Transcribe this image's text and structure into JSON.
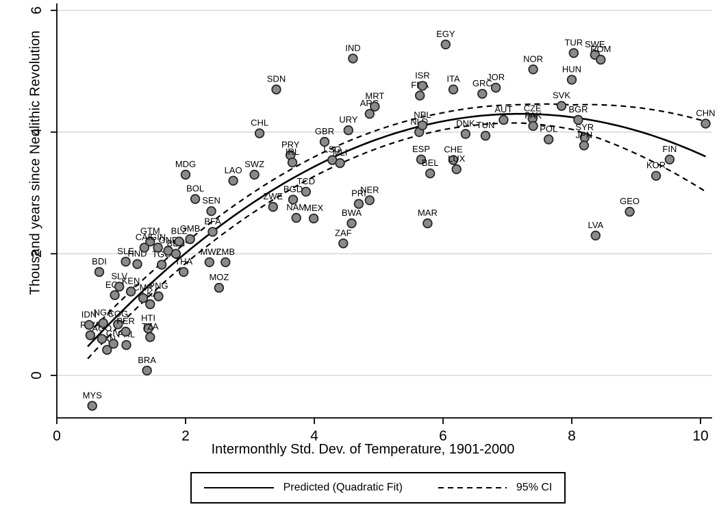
{
  "figure": {
    "ylabel": "Thousand years since Neolithic Revolution",
    "xlabel": "Intermonthly Std. Dev. of Temperature, 1901-2000",
    "legend": {
      "fit_label": "Predicted (Quadratic Fit)",
      "ci_label": "95% CI"
    }
  },
  "chart_data": {
    "type": "scatter",
    "title": "",
    "xlabel": "Intermonthly Std. Dev. of Temperature, 1901-2000",
    "ylabel": "Thousand years since Neolithic Revolution",
    "xlim": [
      0,
      10.5
    ],
    "ylim": [
      -0.9,
      6.3
    ],
    "xticks": [
      0,
      2,
      4,
      6,
      8,
      10
    ],
    "yticks": [
      0,
      2,
      4,
      6
    ],
    "grid": "horizontal",
    "legend_position": "bottom-center",
    "legend_entries": [
      "Predicted (Quadratic Fit)",
      "95% CI"
    ],
    "marker": {
      "fill": "#8a8a8a",
      "stroke": "#262626",
      "radius": 6.3,
      "stroke_width": 1.8
    },
    "colors": {
      "grid": "#d9d9d9",
      "axis": "#000000",
      "fit_line": "#000000",
      "ci_line": "#000000"
    },
    "fit": {
      "type": "quadratic",
      "peak_x": 7.2,
      "peak_y": 4.3,
      "coeff": -0.0847,
      "x_range": [
        0.48,
        10.1
      ]
    },
    "ci": {
      "x": [
        0.48,
        2,
        4,
        6,
        7.2,
        8,
        9,
        10.1
      ],
      "half_width": [
        0.2,
        0.17,
        0.16,
        0.14,
        0.15,
        0.2,
        0.38,
        0.58
      ]
    },
    "points": [
      {
        "label": "MYS",
        "x": 0.55,
        "y": -0.5
      },
      {
        "label": "BRA",
        "x": 1.4,
        "y": 0.08
      },
      {
        "label": "PAN",
        "x": 0.78,
        "y": 0.42
      },
      {
        "label": "PHL",
        "x": 1.08,
        "y": 0.5
      },
      {
        "label": "CIV",
        "x": 0.88,
        "y": 0.52
      },
      {
        "label": "RWA",
        "x": 0.52,
        "y": 0.66
      },
      {
        "label": "AGO",
        "x": 0.7,
        "y": 0.6
      },
      {
        "label": "IDN",
        "x": 0.5,
        "y": 0.83
      },
      {
        "label": "NGA",
        "x": 0.72,
        "y": 0.86
      },
      {
        "label": "COG",
        "x": 0.95,
        "y": 0.84
      },
      {
        "label": "PER",
        "x": 1.07,
        "y": 0.72
      },
      {
        "label": "HTI",
        "x": 1.42,
        "y": 0.77
      },
      {
        "label": "TZA",
        "x": 1.45,
        "y": 0.63
      },
      {
        "label": "LKA",
        "x": 1.45,
        "y": 1.17
      },
      {
        "label": "CMR",
        "x": 1.34,
        "y": 1.27
      },
      {
        "label": "PNG",
        "x": 1.58,
        "y": 1.3
      },
      {
        "label": "ECU",
        "x": 0.9,
        "y": 1.32
      },
      {
        "label": "KEN",
        "x": 1.15,
        "y": 1.38
      },
      {
        "label": "SLV",
        "x": 0.97,
        "y": 1.46
      },
      {
        "label": "BDI",
        "x": 0.66,
        "y": 1.7
      },
      {
        "label": "SLE",
        "x": 1.07,
        "y": 1.87
      },
      {
        "label": "HND",
        "x": 1.25,
        "y": 1.83
      },
      {
        "label": "TGO",
        "x": 1.63,
        "y": 1.82
      },
      {
        "label": "THA",
        "x": 1.97,
        "y": 1.7
      },
      {
        "label": "GTM",
        "x": 1.45,
        "y": 2.2
      },
      {
        "label": "CAF",
        "x": 1.36,
        "y": 2.1
      },
      {
        "label": "GIN",
        "x": 1.57,
        "y": 2.1
      },
      {
        "label": "GNB",
        "x": 1.73,
        "y": 2.05
      },
      {
        "label": "BEN",
        "x": 1.85,
        "y": 2.0
      },
      {
        "label": "BLZ",
        "x": 1.9,
        "y": 2.2
      },
      {
        "label": "GMB",
        "x": 2.07,
        "y": 2.24
      },
      {
        "label": "MDG",
        "x": 2.0,
        "y": 3.3
      },
      {
        "label": "BOL",
        "x": 2.15,
        "y": 2.9
      },
      {
        "label": "SEN",
        "x": 2.4,
        "y": 2.7
      },
      {
        "label": "BFA",
        "x": 2.42,
        "y": 2.36
      },
      {
        "label": "MWI",
        "x": 2.37,
        "y": 1.86
      },
      {
        "label": "ZMB",
        "x": 2.62,
        "y": 1.86
      },
      {
        "label": "MOZ",
        "x": 2.52,
        "y": 1.44
      },
      {
        "label": "LAO",
        "x": 2.74,
        "y": 3.2
      },
      {
        "label": "SWZ",
        "x": 3.07,
        "y": 3.3
      },
      {
        "label": "CHL",
        "x": 3.15,
        "y": 3.98
      },
      {
        "label": "SDN",
        "x": 3.41,
        "y": 4.7
      },
      {
        "label": "ZWE",
        "x": 3.36,
        "y": 2.77
      },
      {
        "label": "BGD",
        "x": 3.67,
        "y": 2.89
      },
      {
        "label": "TCD",
        "x": 3.87,
        "y": 3.02
      },
      {
        "label": "NAM",
        "x": 3.72,
        "y": 2.59
      },
      {
        "label": "MEX",
        "x": 3.99,
        "y": 2.58
      },
      {
        "label": "PRY",
        "x": 3.63,
        "y": 3.62
      },
      {
        "label": "IRL",
        "x": 3.66,
        "y": 3.5
      },
      {
        "label": "GBR",
        "x": 4.16,
        "y": 3.84
      },
      {
        "label": "LSO",
        "x": 4.28,
        "y": 3.54
      },
      {
        "label": "MLI",
        "x": 4.4,
        "y": 3.49
      },
      {
        "label": "URY",
        "x": 4.53,
        "y": 4.03
      },
      {
        "label": "IND",
        "x": 4.6,
        "y": 5.21
      },
      {
        "label": "ARG",
        "x": 4.86,
        "y": 4.3
      },
      {
        "label": "MRT",
        "x": 4.94,
        "y": 4.42
      },
      {
        "label": "PRI",
        "x": 4.69,
        "y": 2.82
      },
      {
        "label": "NER",
        "x": 4.86,
        "y": 2.88
      },
      {
        "label": "BWA",
        "x": 4.58,
        "y": 2.5
      },
      {
        "label": "ZAF",
        "x": 4.45,
        "y": 2.17
      },
      {
        "label": "MAR",
        "x": 5.76,
        "y": 2.5
      },
      {
        "label": "ESP",
        "x": 5.66,
        "y": 3.55
      },
      {
        "label": "BEL",
        "x": 5.8,
        "y": 3.32
      },
      {
        "label": "NLD",
        "x": 5.63,
        "y": 4.0
      },
      {
        "label": "NPL",
        "x": 5.68,
        "y": 4.11
      },
      {
        "label": "FRA",
        "x": 5.64,
        "y": 4.6
      },
      {
        "label": "ISR",
        "x": 5.68,
        "y": 4.76
      },
      {
        "label": "EGY",
        "x": 6.04,
        "y": 5.44
      },
      {
        "label": "ITA",
        "x": 6.16,
        "y": 4.7
      },
      {
        "label": "GRC",
        "x": 6.61,
        "y": 4.63
      },
      {
        "label": "JOR",
        "x": 6.82,
        "y": 4.73
      },
      {
        "label": "CHE",
        "x": 6.16,
        "y": 3.54
      },
      {
        "label": "LUX",
        "x": 6.21,
        "y": 3.39
      },
      {
        "label": "DNK",
        "x": 6.35,
        "y": 3.97
      },
      {
        "label": "TUN",
        "x": 6.66,
        "y": 3.94
      },
      {
        "label": "AUT",
        "x": 6.94,
        "y": 4.2
      },
      {
        "label": "NOR",
        "x": 7.4,
        "y": 5.03
      },
      {
        "label": "CZE",
        "x": 7.39,
        "y": 4.22
      },
      {
        "label": "PAK",
        "x": 7.4,
        "y": 4.1
      },
      {
        "label": "SVK",
        "x": 7.84,
        "y": 4.43
      },
      {
        "label": "HUN",
        "x": 8.0,
        "y": 4.86
      },
      {
        "label": "TUR",
        "x": 8.03,
        "y": 5.3
      },
      {
        "label": "SWE",
        "x": 8.36,
        "y": 5.27
      },
      {
        "label": "ROM",
        "x": 8.45,
        "y": 5.19
      },
      {
        "label": "BGR",
        "x": 8.1,
        "y": 4.2
      },
      {
        "label": "POL",
        "x": 7.64,
        "y": 3.88
      },
      {
        "label": "SYR",
        "x": 8.2,
        "y": 3.91
      },
      {
        "label": "JPN",
        "x": 8.19,
        "y": 3.78
      },
      {
        "label": "LVA",
        "x": 8.37,
        "y": 2.3
      },
      {
        "label": "GEO",
        "x": 8.9,
        "y": 2.69
      },
      {
        "label": "KOR",
        "x": 9.31,
        "y": 3.28
      },
      {
        "label": "FIN",
        "x": 9.52,
        "y": 3.55
      },
      {
        "label": "CHN",
        "x": 10.08,
        "y": 4.14
      }
    ]
  }
}
